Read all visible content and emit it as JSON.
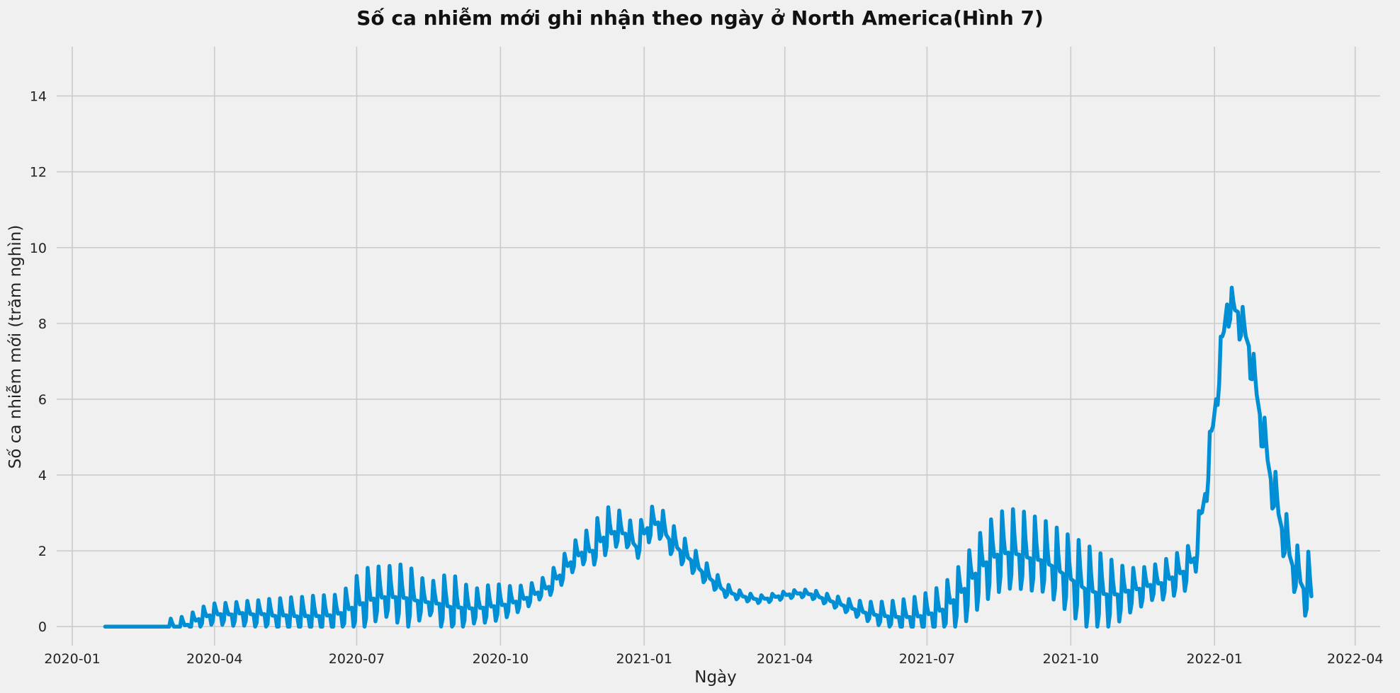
{
  "chart_data": {
    "type": "line",
    "title": "Số ca nhiễm mới ghi nhận theo ngày ở North America(Hình 7)",
    "xlabel": "Ngày",
    "ylabel": "Số ca nhiễm mới (trăm nghìn)",
    "xlim": [
      "2019-12-22",
      "2022-04-17"
    ],
    "ylim": [
      -0.5,
      15.3
    ],
    "x_ticks": [
      "2020-01",
      "2020-04",
      "2020-07",
      "2020-10",
      "2021-01",
      "2021-04",
      "2021-07",
      "2021-10",
      "2022-01",
      "2022-04"
    ],
    "y_ticks": [
      0,
      2,
      4,
      6,
      8,
      10,
      12,
      14
    ],
    "grid": true,
    "legend": "none",
    "line_color": "#008fd5",
    "series": [
      {
        "points": [
          [
            "2020-01-22",
            0
          ],
          [
            "2020-03-08",
            0
          ],
          [
            "2020-03-15",
            0.05
          ],
          [
            "2020-03-22",
            0.2
          ],
          [
            "2020-03-29",
            0.3
          ],
          [
            "2020-04-05",
            0.33
          ],
          [
            "2020-04-12",
            0.32
          ],
          [
            "2020-04-19",
            0.36
          ],
          [
            "2020-04-26",
            0.32
          ],
          [
            "2020-05-03",
            0.33
          ],
          [
            "2020-05-10",
            0.28
          ],
          [
            "2020-05-17",
            0.3
          ],
          [
            "2020-05-24",
            0.27
          ],
          [
            "2020-05-31",
            0.28
          ],
          [
            "2020-06-07",
            0.28
          ],
          [
            "2020-06-14",
            0.3
          ],
          [
            "2020-06-21",
            0.36
          ],
          [
            "2020-06-28",
            0.5
          ],
          [
            "2020-07-05",
            0.62
          ],
          [
            "2020-07-12",
            0.74
          ],
          [
            "2020-07-19",
            0.78
          ],
          [
            "2020-07-26",
            0.78
          ],
          [
            "2020-08-02",
            0.75
          ],
          [
            "2020-08-09",
            0.68
          ],
          [
            "2020-08-16",
            0.64
          ],
          [
            "2020-08-23",
            0.6
          ],
          [
            "2020-08-30",
            0.52
          ],
          [
            "2020-09-06",
            0.5
          ],
          [
            "2020-09-13",
            0.48
          ],
          [
            "2020-09-20",
            0.5
          ],
          [
            "2020-09-27",
            0.54
          ],
          [
            "2020-10-04",
            0.58
          ],
          [
            "2020-10-11",
            0.66
          ],
          [
            "2020-10-18",
            0.76
          ],
          [
            "2020-10-25",
            0.9
          ],
          [
            "2020-11-01",
            1.05
          ],
          [
            "2020-11-08",
            1.35
          ],
          [
            "2020-11-15",
            1.7
          ],
          [
            "2020-11-22",
            1.95
          ],
          [
            "2020-11-29",
            2.0
          ],
          [
            "2020-12-06",
            2.35
          ],
          [
            "2020-12-13",
            2.5
          ],
          [
            "2020-12-20",
            2.45
          ],
          [
            "2020-12-27",
            2.1
          ],
          [
            "2021-01-03",
            2.6
          ],
          [
            "2021-01-10",
            2.75
          ],
          [
            "2021-01-17",
            2.3
          ],
          [
            "2021-01-24",
            2.0
          ],
          [
            "2021-01-31",
            1.75
          ],
          [
            "2021-02-07",
            1.45
          ],
          [
            "2021-02-14",
            1.2
          ],
          [
            "2021-02-21",
            0.95
          ],
          [
            "2021-02-28",
            0.85
          ],
          [
            "2021-03-07",
            0.78
          ],
          [
            "2021-03-14",
            0.72
          ],
          [
            "2021-03-21",
            0.74
          ],
          [
            "2021-03-28",
            0.8
          ],
          [
            "2021-04-04",
            0.85
          ],
          [
            "2021-04-11",
            0.88
          ],
          [
            "2021-04-18",
            0.85
          ],
          [
            "2021-04-25",
            0.75
          ],
          [
            "2021-05-02",
            0.65
          ],
          [
            "2021-05-09",
            0.55
          ],
          [
            "2021-05-16",
            0.45
          ],
          [
            "2021-05-23",
            0.36
          ],
          [
            "2021-05-30",
            0.3
          ],
          [
            "2021-06-06",
            0.27
          ],
          [
            "2021-06-13",
            0.25
          ],
          [
            "2021-06-20",
            0.25
          ],
          [
            "2021-06-27",
            0.28
          ],
          [
            "2021-07-04",
            0.35
          ],
          [
            "2021-07-11",
            0.45
          ],
          [
            "2021-07-18",
            0.7
          ],
          [
            "2021-07-25",
            1.0
          ],
          [
            "2021-08-01",
            1.4
          ],
          [
            "2021-08-08",
            1.7
          ],
          [
            "2021-08-15",
            1.9
          ],
          [
            "2021-08-22",
            1.95
          ],
          [
            "2021-08-29",
            1.9
          ],
          [
            "2021-09-05",
            1.8
          ],
          [
            "2021-09-12",
            1.75
          ],
          [
            "2021-09-19",
            1.6
          ],
          [
            "2021-09-26",
            1.4
          ],
          [
            "2021-10-03",
            1.2
          ],
          [
            "2021-10-10",
            1.0
          ],
          [
            "2021-10-17",
            0.9
          ],
          [
            "2021-10-24",
            0.85
          ],
          [
            "2021-10-31",
            0.85
          ],
          [
            "2021-11-07",
            0.95
          ],
          [
            "2021-11-14",
            1.0
          ],
          [
            "2021-11-21",
            1.1
          ],
          [
            "2021-11-28",
            1.15
          ],
          [
            "2021-12-05",
            1.3
          ],
          [
            "2021-12-12",
            1.45
          ],
          [
            "2021-12-19",
            1.8
          ],
          [
            "2021-12-26",
            3.5
          ],
          [
            "2022-01-02",
            6.0
          ],
          [
            "2022-01-09",
            8.5
          ],
          [
            "2022-01-16",
            8.3
          ],
          [
            "2022-01-23",
            7.4
          ],
          [
            "2022-01-30",
            5.6
          ],
          [
            "2022-02-06",
            3.9
          ],
          [
            "2022-02-13",
            2.6
          ],
          [
            "2022-02-20",
            1.6
          ],
          [
            "2022-02-27",
            1.0
          ],
          [
            "2022-03-04",
            0.8
          ]
        ]
      }
    ],
    "weekly_swing": [
      [
        0.2,
        0.2
      ],
      [
        0.23,
        0.25
      ],
      [
        0.25,
        0.3
      ],
      [
        0.3,
        0.3
      ],
      [
        0.35,
        0.35
      ],
      [
        0.45,
        0.45
      ],
      [
        0.6,
        0.5
      ],
      [
        0.85,
        0.55
      ],
      [
        0.5,
        0.5
      ],
      [
        0.75,
        0.9
      ],
      [
        0.5,
        0.8
      ],
      [
        0.8,
        0.9
      ],
      [
        0.3,
        0.5
      ],
      [
        0.8,
        0.9
      ],
      [
        0.4,
        0.5
      ],
      [
        0.4,
        0.6
      ],
      [
        0.3,
        0.4
      ],
      [
        0.2,
        0.3
      ],
      [
        0.3,
        0.4
      ],
      [
        0.3,
        0.5
      ],
      [
        0.5,
        0.8
      ],
      [
        0.3,
        0.5
      ],
      [
        0.4,
        0.5
      ],
      [
        0.35,
        0.5
      ],
      [
        0.3,
        0.4
      ],
      [
        0.2,
        0.3
      ],
      [
        0.12,
        0.15
      ],
      [
        0.1,
        0.1
      ],
      [
        0.1,
        0.1
      ],
      [
        0.1,
        0.1
      ],
      [
        0.12,
        0.15
      ],
      [
        0.15,
        0.2
      ],
      [
        0.2,
        0.3
      ],
      [
        0.3,
        0.4
      ],
      [
        0.5,
        0.5
      ],
      [
        0.6,
        0.6
      ],
      [
        0.8,
        0.7
      ],
      [
        1.0,
        0.9
      ],
      [
        1.0,
        1.1
      ],
      [
        0.9,
        1.2
      ],
      [
        0.8,
        1.1
      ],
      [
        0.9,
        1.1
      ],
      [
        1.0,
        1.2
      ],
      [
        0.9,
        1.0
      ],
      [
        0.6,
        0.6
      ],
      [
        0.4,
        0.5
      ],
      [
        0.5,
        0.6
      ],
      [
        0.6,
        0.5
      ],
      [
        0.5,
        0.6
      ],
      [
        0.6,
        0.5
      ],
      [
        0.6,
        0.6
      ],
      [
        0.6,
        0.8
      ],
      [
        0.6,
        0.8
      ],
      [
        1.6,
        2.2
      ],
      [
        3.0,
        3.5
      ],
      [
        1.5,
        3.0
      ],
      [
        3.0,
        3.5
      ],
      [
        1.5,
        3.5
      ],
      [
        2.0,
        3.0
      ],
      [
        1.5,
        2.5
      ],
      [
        1.2,
        1.5
      ],
      [
        0.8,
        1.0
      ],
      [
        0.5,
        0.7
      ],
      [
        0.3,
        0.4
      ],
      [
        0.3,
        0.3
      ]
    ]
  }
}
